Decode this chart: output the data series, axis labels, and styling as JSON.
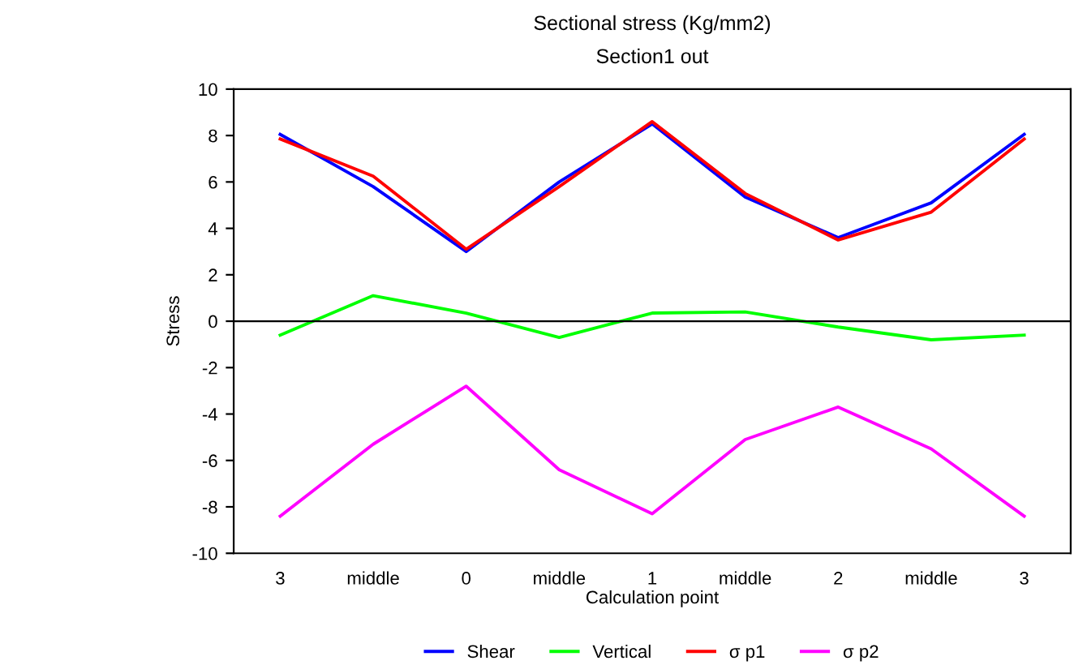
{
  "chart_data": {
    "type": "line",
    "title": "Sectional stress (Kg/mm2)",
    "subtitle": "Section1 out",
    "xlabel": "Calculation point",
    "ylabel": "Stress",
    "categories": [
      "3",
      "middle",
      "0",
      "middle",
      "1",
      "middle",
      "2",
      "middle",
      "3"
    ],
    "series": [
      {
        "name": "Shear",
        "color": "#0000ff",
        "values": [
          8.05,
          5.8,
          3.0,
          6.0,
          8.5,
          5.35,
          3.6,
          5.1,
          8.05
        ]
      },
      {
        "name": "Vertical",
        "color": "#00ff00",
        "values": [
          -0.6,
          1.1,
          0.35,
          -0.7,
          0.35,
          0.4,
          -0.25,
          -0.8,
          -0.6
        ]
      },
      {
        "name": "σ p1",
        "color": "#ff0000",
        "values": [
          7.85,
          6.25,
          3.1,
          5.8,
          8.6,
          5.5,
          3.5,
          4.7,
          7.85
        ]
      },
      {
        "name": "σ p2",
        "color": "#ff00ff",
        "values": [
          -8.4,
          -5.3,
          -2.8,
          -6.4,
          -8.3,
          -5.1,
          -3.7,
          -5.5,
          -8.4
        ]
      }
    ],
    "ylim": [
      -10,
      10
    ],
    "yticks": [
      -10,
      -8,
      -6,
      -4,
      -2,
      0,
      2,
      4,
      6,
      8,
      10
    ],
    "ref_lines": [
      {
        "axis": "y",
        "value": 0,
        "color": "#000000"
      }
    ],
    "grid": false,
    "legend": "bottom",
    "marker": "none",
    "line_style": "solid"
  }
}
